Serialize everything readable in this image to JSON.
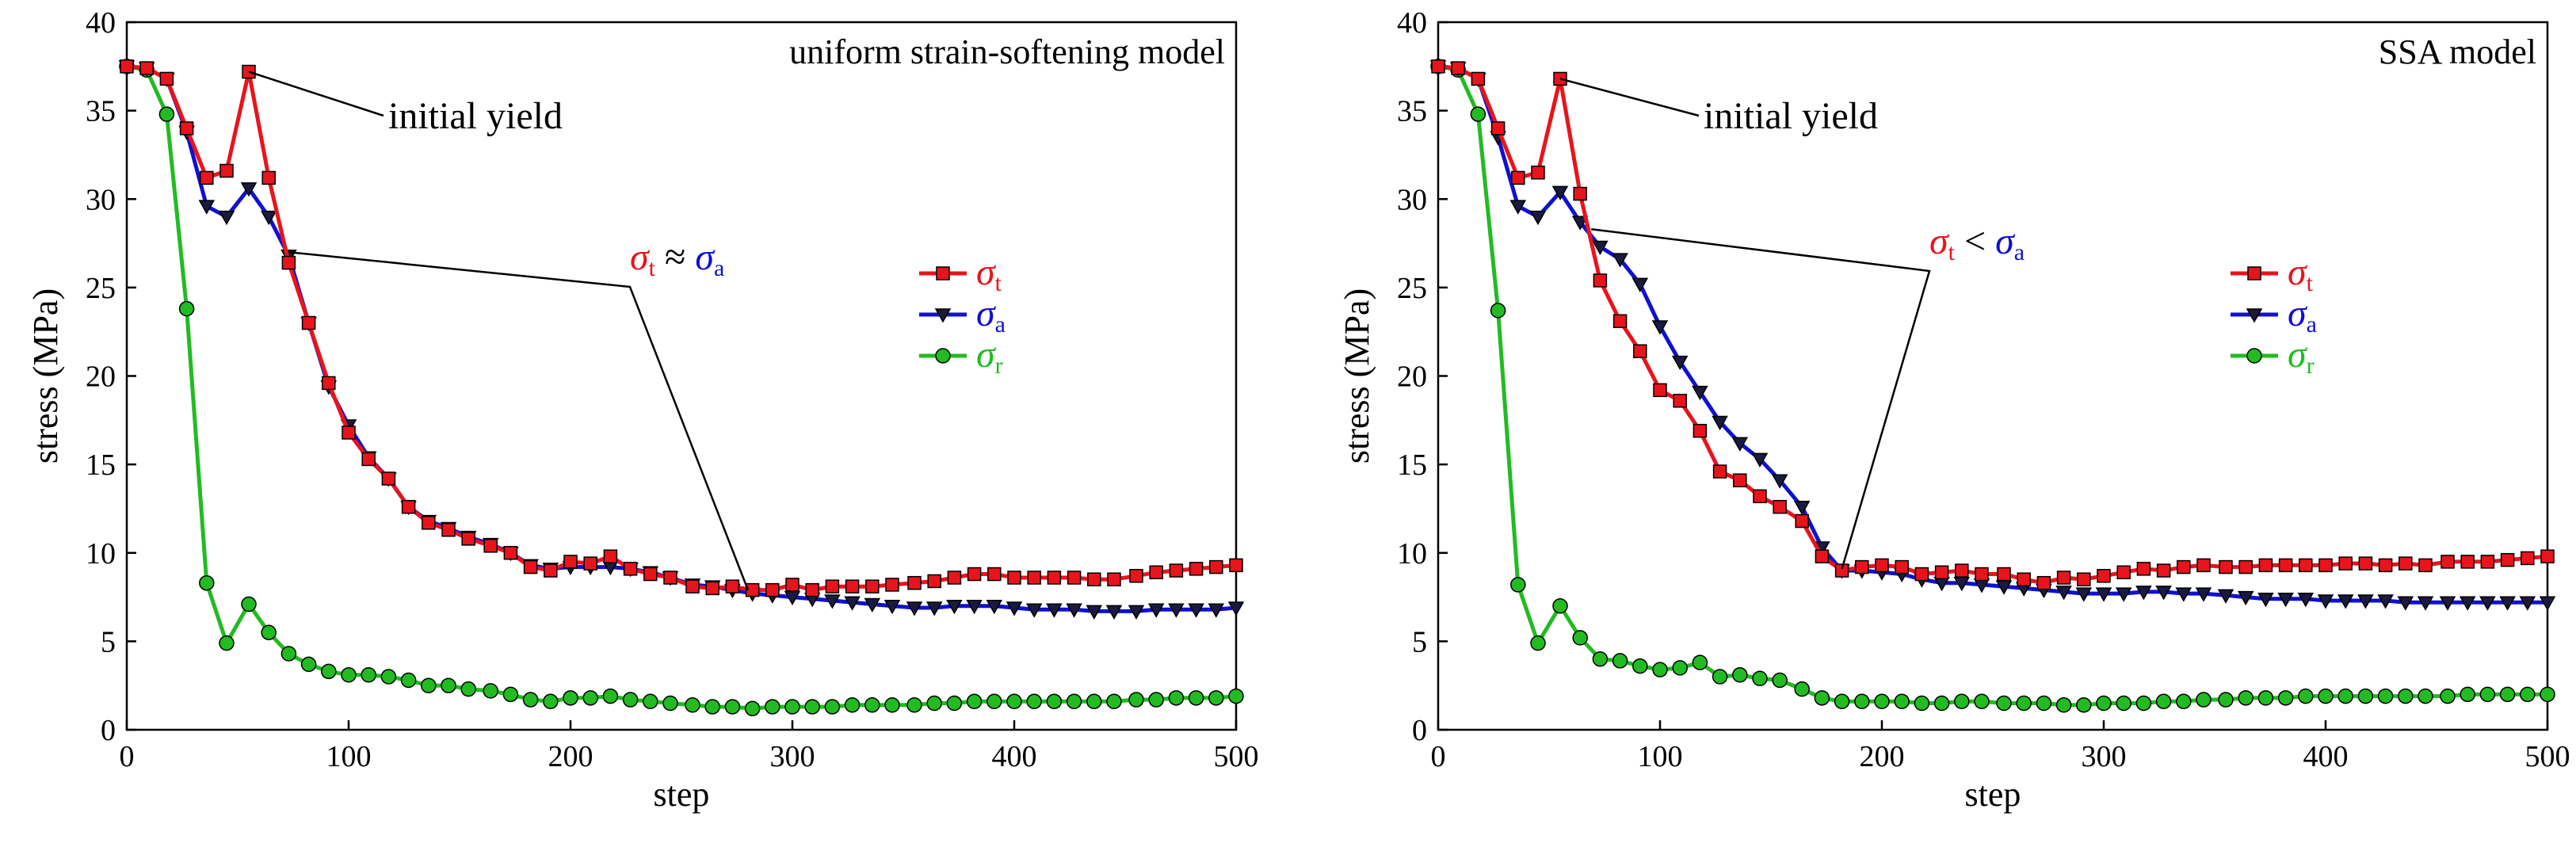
{
  "chart_data": [
    {
      "type": "line",
      "title": "uniform strain-softening model",
      "xlabel": "step",
      "ylabel": "stress (MPa)",
      "xlim": [
        0,
        500
      ],
      "ylim": [
        0,
        40
      ],
      "xticks": [
        "0",
        "100",
        "200",
        "300",
        "400",
        "500"
      ],
      "yticks": [
        "0",
        "5",
        "10",
        "15",
        "20",
        "25",
        "30",
        "35",
        "40"
      ],
      "annotation_yield": "initial yield",
      "annotation_yield_at": [
        55,
        37.2
      ],
      "relation": {
        "left": "σ",
        "left_sub": "t",
        "op": "≈",
        "right": "σ",
        "right_sub": "a",
        "colors": [
          "#e8141c",
          "#000000",
          "#1010d0"
        ]
      },
      "relation_pointers": [
        [
          73,
          27
        ],
        [
          280,
          7.9
        ]
      ],
      "legend": [
        {
          "symbol": "σ",
          "sub": "t",
          "color": "#e8141c",
          "marker": "square"
        },
        {
          "symbol": "σ",
          "sub": "a",
          "color": "#1010d0",
          "marker": "triangle-down"
        },
        {
          "symbol": "σ",
          "sub": "r",
          "color": "#22bb22",
          "marker": "circle"
        }
      ],
      "series": [
        {
          "name": "σt",
          "color": "#e8141c",
          "marker": "square",
          "x": [
            0,
            9,
            18,
            27,
            36,
            45,
            55,
            64,
            73,
            82,
            91,
            100,
            109,
            118,
            127,
            136,
            145,
            154,
            164,
            173,
            182,
            191,
            200,
            209,
            218,
            227,
            236,
            245,
            255,
            264,
            273,
            282,
            291,
            300,
            309,
            318,
            327,
            336,
            345,
            355,
            364,
            373,
            382,
            391,
            400,
            409,
            418,
            427,
            436,
            445,
            455,
            464,
            473,
            482,
            491,
            500
          ],
          "y": [
            37.5,
            37.4,
            36.8,
            34.0,
            31.2,
            31.6,
            37.2,
            31.2,
            26.4,
            23.0,
            19.6,
            16.8,
            15.3,
            14.2,
            12.6,
            11.7,
            11.3,
            10.8,
            10.4,
            10.0,
            9.2,
            9.0,
            9.5,
            9.4,
            9.8,
            9.1,
            8.8,
            8.6,
            8.1,
            8.0,
            8.1,
            7.9,
            7.9,
            8.2,
            7.9,
            8.1,
            8.1,
            8.1,
            8.2,
            8.3,
            8.4,
            8.6,
            8.8,
            8.8,
            8.6,
            8.6,
            8.6,
            8.6,
            8.5,
            8.5,
            8.7,
            8.9,
            9.0,
            9.1,
            9.2,
            9.3
          ]
        },
        {
          "name": "σa",
          "color": "#1010d0",
          "marker": "triangle-down",
          "x": [
            0,
            9,
            18,
            27,
            36,
            45,
            55,
            64,
            73,
            82,
            91,
            100,
            109,
            118,
            127,
            136,
            145,
            154,
            164,
            173,
            182,
            191,
            200,
            209,
            218,
            227,
            236,
            245,
            255,
            264,
            273,
            282,
            291,
            300,
            309,
            318,
            327,
            336,
            345,
            355,
            364,
            373,
            382,
            391,
            400,
            409,
            418,
            427,
            436,
            445,
            455,
            464,
            473,
            482,
            491,
            500
          ],
          "y": [
            37.5,
            37.4,
            36.8,
            33.8,
            29.6,
            29.0,
            30.6,
            29.0,
            26.8,
            23.0,
            19.4,
            17.2,
            15.4,
            14.2,
            12.6,
            11.8,
            11.4,
            10.9,
            10.5,
            10.0,
            9.3,
            9.1,
            9.2,
            9.2,
            9.2,
            9.1,
            8.9,
            8.6,
            8.2,
            8.1,
            7.9,
            7.7,
            7.6,
            7.5,
            7.4,
            7.3,
            7.2,
            7.1,
            7.0,
            6.9,
            6.9,
            7.0,
            7.0,
            7.0,
            6.9,
            6.8,
            6.8,
            6.8,
            6.7,
            6.7,
            6.7,
            6.8,
            6.8,
            6.8,
            6.8,
            6.9
          ]
        },
        {
          "name": "σr",
          "color": "#22bb22",
          "marker": "circle",
          "x": [
            0,
            9,
            18,
            27,
            36,
            45,
            55,
            64,
            73,
            82,
            91,
            100,
            109,
            118,
            127,
            136,
            145,
            154,
            164,
            173,
            182,
            191,
            200,
            209,
            218,
            227,
            236,
            245,
            255,
            264,
            273,
            282,
            291,
            300,
            309,
            318,
            327,
            336,
            345,
            355,
            364,
            373,
            382,
            391,
            400,
            409,
            418,
            427,
            436,
            445,
            455,
            464,
            473,
            482,
            491,
            500
          ],
          "y": [
            37.5,
            37.3,
            34.8,
            23.8,
            8.3,
            4.9,
            7.1,
            5.5,
            4.3,
            3.7,
            3.3,
            3.1,
            3.1,
            3.0,
            2.8,
            2.5,
            2.5,
            2.3,
            2.2,
            2.0,
            1.7,
            1.6,
            1.8,
            1.8,
            1.9,
            1.7,
            1.6,
            1.5,
            1.4,
            1.3,
            1.3,
            1.2,
            1.3,
            1.3,
            1.3,
            1.3,
            1.4,
            1.4,
            1.4,
            1.4,
            1.5,
            1.5,
            1.6,
            1.6,
            1.6,
            1.6,
            1.6,
            1.6,
            1.6,
            1.6,
            1.7,
            1.7,
            1.8,
            1.8,
            1.8,
            1.9
          ]
        }
      ]
    },
    {
      "type": "line",
      "title": "SSA model",
      "xlabel": "step",
      "ylabel": "stress (MPa)",
      "xlim": [
        0,
        500
      ],
      "ylim": [
        0,
        40
      ],
      "xticks": [
        "0",
        "100",
        "200",
        "300",
        "400",
        "500"
      ],
      "yticks": [
        "0",
        "5",
        "10",
        "15",
        "20",
        "25",
        "30",
        "35",
        "40"
      ],
      "annotation_yield": "initial yield",
      "annotation_yield_at": [
        55,
        36.8
      ],
      "relation": {
        "left": "σ",
        "left_sub": "t",
        "op": "<",
        "right": "σ",
        "right_sub": "a",
        "colors": [
          "#e8141c",
          "#000000",
          "#1010d0"
        ]
      },
      "relation_pointers": [
        [
          69,
          28.3
        ],
        [
          182,
          9.1
        ]
      ],
      "legend": [
        {
          "symbol": "σ",
          "sub": "t",
          "color": "#e8141c",
          "marker": "square"
        },
        {
          "symbol": "σ",
          "sub": "a",
          "color": "#1010d0",
          "marker": "triangle-down"
        },
        {
          "symbol": "σ",
          "sub": "r",
          "color": "#22bb22",
          "marker": "circle"
        }
      ],
      "series": [
        {
          "name": "σt",
          "color": "#e8141c",
          "marker": "square",
          "x": [
            0,
            9,
            18,
            27,
            36,
            45,
            55,
            64,
            73,
            82,
            91,
            100,
            109,
            118,
            127,
            136,
            145,
            154,
            164,
            173,
            182,
            191,
            200,
            209,
            218,
            227,
            236,
            245,
            255,
            264,
            273,
            282,
            291,
            300,
            309,
            318,
            327,
            336,
            345,
            355,
            364,
            373,
            382,
            391,
            400,
            409,
            418,
            427,
            436,
            445,
            455,
            464,
            473,
            482,
            491,
            500
          ],
          "y": [
            37.5,
            37.4,
            36.8,
            34.0,
            31.2,
            31.5,
            36.8,
            30.3,
            25.4,
            23.1,
            21.4,
            19.2,
            18.6,
            16.9,
            14.6,
            14.1,
            13.2,
            12.6,
            11.8,
            9.8,
            9.0,
            9.2,
            9.3,
            9.2,
            8.8,
            8.9,
            9.0,
            8.8,
            8.8,
            8.5,
            8.3,
            8.6,
            8.5,
            8.7,
            8.9,
            9.1,
            9.0,
            9.2,
            9.3,
            9.2,
            9.2,
            9.3,
            9.3,
            9.3,
            9.3,
            9.4,
            9.4,
            9.3,
            9.4,
            9.3,
            9.5,
            9.5,
            9.5,
            9.6,
            9.7,
            9.8
          ]
        },
        {
          "name": "σa",
          "color": "#1010d0",
          "marker": "triangle-down",
          "x": [
            0,
            9,
            18,
            27,
            36,
            45,
            55,
            64,
            73,
            82,
            91,
            100,
            109,
            118,
            127,
            136,
            145,
            154,
            164,
            173,
            182,
            191,
            200,
            209,
            218,
            227,
            236,
            245,
            255,
            264,
            273,
            282,
            291,
            300,
            309,
            318,
            327,
            336,
            345,
            355,
            364,
            373,
            382,
            391,
            400,
            409,
            418,
            427,
            436,
            445,
            455,
            464,
            473,
            482,
            491,
            500
          ],
          "y": [
            37.5,
            37.4,
            36.8,
            33.5,
            29.6,
            29.0,
            30.4,
            28.7,
            27.3,
            26.6,
            25.2,
            22.8,
            20.8,
            19.1,
            17.4,
            16.2,
            15.3,
            14.1,
            12.6,
            10.3,
            9.0,
            9.0,
            8.9,
            8.8,
            8.5,
            8.3,
            8.3,
            8.2,
            8.1,
            8.0,
            7.9,
            7.8,
            7.7,
            7.7,
            7.7,
            7.8,
            7.8,
            7.7,
            7.7,
            7.6,
            7.5,
            7.4,
            7.4,
            7.4,
            7.3,
            7.3,
            7.3,
            7.3,
            7.2,
            7.2,
            7.2,
            7.2,
            7.2,
            7.2,
            7.2,
            7.2
          ]
        },
        {
          "name": "σr",
          "color": "#22bb22",
          "marker": "circle",
          "x": [
            0,
            9,
            18,
            27,
            36,
            45,
            55,
            64,
            73,
            82,
            91,
            100,
            109,
            118,
            127,
            136,
            145,
            154,
            164,
            173,
            182,
            191,
            200,
            209,
            218,
            227,
            236,
            245,
            255,
            264,
            273,
            282,
            291,
            300,
            309,
            318,
            327,
            336,
            345,
            355,
            364,
            373,
            382,
            391,
            400,
            409,
            418,
            427,
            436,
            445,
            455,
            464,
            473,
            482,
            491,
            500
          ],
          "y": [
            37.5,
            37.3,
            34.8,
            23.7,
            8.2,
            4.9,
            7.0,
            5.2,
            4.0,
            3.9,
            3.6,
            3.4,
            3.5,
            3.8,
            3.0,
            3.1,
            2.9,
            2.8,
            2.3,
            1.8,
            1.6,
            1.6,
            1.6,
            1.6,
            1.5,
            1.5,
            1.6,
            1.6,
            1.5,
            1.5,
            1.5,
            1.4,
            1.4,
            1.5,
            1.5,
            1.5,
            1.6,
            1.6,
            1.7,
            1.7,
            1.8,
            1.8,
            1.8,
            1.9,
            1.9,
            1.9,
            1.9,
            1.9,
            1.9,
            1.9,
            1.9,
            2.0,
            2.0,
            2.0,
            2.0,
            2.0
          ]
        }
      ]
    }
  ]
}
